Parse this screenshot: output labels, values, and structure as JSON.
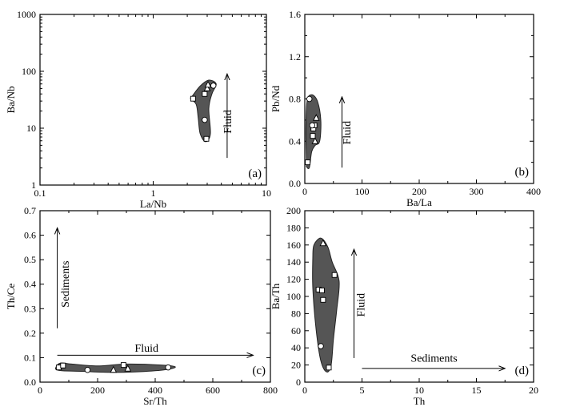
{
  "chart_data": [
    {
      "id": "a",
      "type": "scatter",
      "panel_label": "(a)",
      "xlabel": "La/Nb",
      "ylabel": "Ba/Nb",
      "xscale": "log",
      "yscale": "log",
      "xlim": [
        0.1,
        10
      ],
      "ylim": [
        1,
        1000
      ],
      "xticks": [
        {
          "v": 0.1,
          "l": "0.1"
        },
        {
          "v": 1,
          "l": "1"
        },
        {
          "v": 10,
          "l": "10"
        }
      ],
      "yticks": [
        {
          "v": 1,
          "l": "1"
        },
        {
          "v": 10,
          "l": "10"
        },
        {
          "v": 100,
          "l": "100"
        },
        {
          "v": 1000,
          "l": "1000"
        }
      ],
      "field": [
        [
          2.2,
          36
        ],
        [
          2.6,
          55
        ],
        [
          3.1,
          70
        ],
        [
          3.6,
          60
        ],
        [
          3.3,
          40
        ],
        [
          3.1,
          22
        ],
        [
          3.2,
          8
        ],
        [
          2.9,
          5.8
        ],
        [
          2.6,
          8
        ],
        [
          2.5,
          15
        ],
        [
          2.4,
          26
        ],
        [
          2.15,
          33
        ]
      ],
      "points": [
        {
          "x": 2.25,
          "y": 33,
          "m": "square"
        },
        {
          "x": 2.85,
          "y": 40,
          "m": "square"
        },
        {
          "x": 2.95,
          "y": 6.5,
          "m": "square"
        },
        {
          "x": 3.0,
          "y": 50,
          "m": "triangle"
        },
        {
          "x": 3.05,
          "y": 58,
          "m": "triangle"
        },
        {
          "x": 3.4,
          "y": 56,
          "m": "circle"
        },
        {
          "x": 2.85,
          "y": 14,
          "m": "circle"
        }
      ],
      "arrows": [
        {
          "text": "Fluid",
          "from": [
            4.5,
            3
          ],
          "to": [
            4.5,
            90
          ],
          "text_at": [
            4.9,
            13
          ],
          "text_rot": -90
        }
      ]
    },
    {
      "id": "b",
      "type": "scatter",
      "panel_label": "(b)",
      "xlabel": "Ba/La",
      "ylabel": "Pb/Nd",
      "xscale": "linear",
      "yscale": "linear",
      "xlim": [
        0,
        400
      ],
      "ylim": [
        0,
        1.6
      ],
      "xticks": [
        {
          "v": 0,
          "l": "0"
        },
        {
          "v": 100,
          "l": "100"
        },
        {
          "v": 200,
          "l": "200"
        },
        {
          "v": 300,
          "l": "300"
        },
        {
          "v": 400,
          "l": "400"
        }
      ],
      "yticks": [
        {
          "v": 0,
          "l": "0.0"
        },
        {
          "v": 0.4,
          "l": "0.4"
        },
        {
          "v": 0.8,
          "l": "0.8"
        },
        {
          "v": 1.2,
          "l": "1.2"
        },
        {
          "v": 1.6,
          "l": "1.6"
        }
      ],
      "field": [
        [
          3,
          0.2
        ],
        [
          2,
          0.5
        ],
        [
          4,
          0.78
        ],
        [
          12,
          0.84
        ],
        [
          22,
          0.78
        ],
        [
          28,
          0.6
        ],
        [
          26,
          0.4
        ],
        [
          18,
          0.36
        ],
        [
          12,
          0.3
        ],
        [
          8,
          0.15
        ],
        [
          3,
          0.16
        ]
      ],
      "points": [
        {
          "x": 5,
          "y": 0.2,
          "m": "square"
        },
        {
          "x": 14,
          "y": 0.45,
          "m": "square"
        },
        {
          "x": 15,
          "y": 0.52,
          "m": "square"
        },
        {
          "x": 17,
          "y": 0.55,
          "m": "square"
        },
        {
          "x": 20,
          "y": 0.62,
          "m": "triangle"
        },
        {
          "x": 18,
          "y": 0.4,
          "m": "triangle"
        },
        {
          "x": 8,
          "y": 0.8,
          "m": "circle"
        },
        {
          "x": 13,
          "y": 0.55,
          "m": "circle"
        }
      ],
      "arrows": [
        {
          "text": "Fluid",
          "from": [
            65,
            0.15
          ],
          "to": [
            65,
            0.82
          ],
          "text_at": [
            80,
            0.48
          ],
          "text_rot": -90
        }
      ]
    },
    {
      "id": "c",
      "type": "scatter",
      "panel_label": "(c)",
      "xlabel": "Sr/Th",
      "ylabel": "Th/Ce",
      "xscale": "linear",
      "yscale": "linear",
      "xlim": [
        0,
        800
      ],
      "ylim": [
        0,
        0.7
      ],
      "xticks": [
        {
          "v": 0,
          "l": "0"
        },
        {
          "v": 200,
          "l": "200"
        },
        {
          "v": 400,
          "l": "400"
        },
        {
          "v": 600,
          "l": "600"
        },
        {
          "v": 800,
          "l": "800"
        }
      ],
      "yticks": [
        {
          "v": 0,
          "l": "0.0"
        },
        {
          "v": 0.1,
          "l": "0.1"
        },
        {
          "v": 0.2,
          "l": "0.2"
        },
        {
          "v": 0.3,
          "l": "0.3"
        },
        {
          "v": 0.4,
          "l": "0.4"
        },
        {
          "v": 0.5,
          "l": "0.5"
        },
        {
          "v": 0.6,
          "l": "0.6"
        },
        {
          "v": 0.7,
          "l": "0.7"
        }
      ],
      "field": [
        [
          55,
          0.06
        ],
        [
          70,
          0.078
        ],
        [
          110,
          0.074
        ],
        [
          200,
          0.066
        ],
        [
          300,
          0.074
        ],
        [
          420,
          0.07
        ],
        [
          470,
          0.062
        ],
        [
          430,
          0.05
        ],
        [
          330,
          0.042
        ],
        [
          240,
          0.04
        ],
        [
          150,
          0.044
        ],
        [
          80,
          0.046
        ],
        [
          58,
          0.05
        ]
      ],
      "points": [
        {
          "x": 65,
          "y": 0.06,
          "m": "square"
        },
        {
          "x": 80,
          "y": 0.068,
          "m": "square"
        },
        {
          "x": 290,
          "y": 0.07,
          "m": "square"
        },
        {
          "x": 255,
          "y": 0.05,
          "m": "triangle"
        },
        {
          "x": 305,
          "y": 0.055,
          "m": "triangle"
        },
        {
          "x": 165,
          "y": 0.05,
          "m": "circle"
        },
        {
          "x": 445,
          "y": 0.06,
          "m": "circle"
        }
      ],
      "arrows": [
        {
          "text": "Sediments",
          "from": [
            60,
            0.22
          ],
          "to": [
            60,
            0.63
          ],
          "text_at": [
            100,
            0.4
          ],
          "text_rot": -90
        },
        {
          "text": "Fluid",
          "from": [
            60,
            0.11
          ],
          "to": [
            740,
            0.11
          ],
          "text_at": [
            370,
            0.125
          ],
          "text_rot": 0
        }
      ]
    },
    {
      "id": "d",
      "type": "scatter",
      "panel_label": "(d)",
      "xlabel": "Th",
      "ylabel": "Ba/Th",
      "xscale": "linear",
      "yscale": "linear",
      "xlim": [
        0,
        20
      ],
      "ylim": [
        0,
        200
      ],
      "xticks": [
        {
          "v": 0,
          "l": "0"
        },
        {
          "v": 5,
          "l": "5"
        },
        {
          "v": 10,
          "l": "10"
        },
        {
          "v": 15,
          "l": "15"
        },
        {
          "v": 20,
          "l": "20"
        }
      ],
      "yticks": [
        {
          "v": 0,
          "l": "0"
        },
        {
          "v": 20,
          "l": "20"
        },
        {
          "v": 40,
          "l": "40"
        },
        {
          "v": 60,
          "l": "60"
        },
        {
          "v": 80,
          "l": "80"
        },
        {
          "v": 100,
          "l": "100"
        },
        {
          "v": 120,
          "l": "120"
        },
        {
          "v": 140,
          "l": "140"
        },
        {
          "v": 160,
          "l": "160"
        },
        {
          "v": 180,
          "l": "180"
        },
        {
          "v": 200,
          "l": "200"
        }
      ],
      "field": [
        [
          0.8,
          160
        ],
        [
          1.4,
          168
        ],
        [
          2.0,
          158
        ],
        [
          2.4,
          140
        ],
        [
          3.0,
          118
        ],
        [
          2.8,
          85
        ],
        [
          2.5,
          50
        ],
        [
          2.3,
          20
        ],
        [
          1.9,
          12
        ],
        [
          1.4,
          25
        ],
        [
          1.0,
          60
        ],
        [
          0.7,
          110
        ],
        [
          0.7,
          145
        ]
      ],
      "points": [
        {
          "x": 1.2,
          "y": 108,
          "m": "square"
        },
        {
          "x": 1.5,
          "y": 107,
          "m": "square"
        },
        {
          "x": 1.6,
          "y": 96,
          "m": "square"
        },
        {
          "x": 2.6,
          "y": 125,
          "m": "square"
        },
        {
          "x": 2.1,
          "y": 17,
          "m": "square"
        },
        {
          "x": 1.6,
          "y": 162,
          "m": "triangle"
        },
        {
          "x": 1.4,
          "y": 42,
          "m": "circle"
        }
      ],
      "arrows": [
        {
          "text": "Fluid",
          "from": [
            4.3,
            28
          ],
          "to": [
            4.3,
            155
          ],
          "text_at": [
            5.2,
            90
          ],
          "text_rot": -90
        },
        {
          "text": "Sediments",
          "from": [
            5.0,
            16
          ],
          "to": [
            17.5,
            16
          ],
          "text_at": [
            11.3,
            24
          ],
          "text_rot": 0
        }
      ]
    }
  ]
}
